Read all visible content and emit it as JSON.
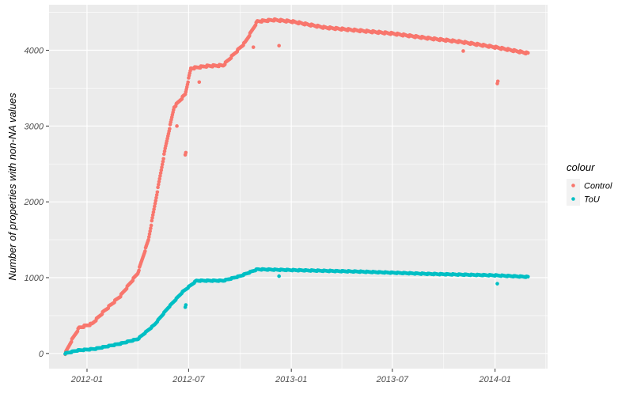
{
  "chart_data": {
    "type": "scatter",
    "title": "",
    "xlabel": "",
    "ylabel": "Number of properties with non-NA values",
    "x_type": "date",
    "xlim": [
      "2011-10-25",
      "2014-04-05"
    ],
    "ylim": [
      -200,
      4600
    ],
    "x_ticks": [
      "2012-01",
      "2012-07",
      "2013-01",
      "2013-07",
      "2014-01"
    ],
    "y_ticks": [
      0,
      1000,
      2000,
      3000,
      4000
    ],
    "grid": true,
    "legend": {
      "title": "colour",
      "placement": "right",
      "entries": [
        {
          "label": "Control",
          "color": "#F8766D"
        },
        {
          "label": "ToU",
          "color": "#00BFC4"
        }
      ]
    },
    "series": [
      {
        "name": "Control",
        "color": "#F8766D",
        "points": [
          [
            "2011-11-23",
            0
          ],
          [
            "2011-12-05",
            180
          ],
          [
            "2011-12-18",
            340
          ],
          [
            "2012-01-10",
            390
          ],
          [
            "2012-02-01",
            560
          ],
          [
            "2012-03-01",
            760
          ],
          [
            "2012-04-01",
            1060
          ],
          [
            "2012-04-20",
            1500
          ],
          [
            "2012-05-05",
            2100
          ],
          [
            "2012-05-20",
            2700
          ],
          [
            "2012-06-05",
            3250
          ],
          [
            "2012-06-25",
            3420
          ],
          [
            "2012-07-05",
            3760
          ],
          [
            "2012-08-01",
            3790
          ],
          [
            "2012-09-01",
            3800
          ],
          [
            "2012-10-10",
            4100
          ],
          [
            "2012-11-01",
            4380
          ],
          [
            "2012-12-01",
            4400
          ],
          [
            "2013-01-01",
            4380
          ],
          [
            "2013-03-01",
            4300
          ],
          [
            "2013-05-01",
            4260
          ],
          [
            "2013-07-01",
            4220
          ],
          [
            "2013-09-01",
            4160
          ],
          [
            "2013-11-01",
            4110
          ],
          [
            "2014-01-01",
            4040
          ],
          [
            "2014-03-01",
            3960
          ]
        ],
        "outliers": [
          [
            "2012-06-25",
            2620
          ],
          [
            "2012-06-26",
            2650
          ],
          [
            "2012-06-10",
            3000
          ],
          [
            "2012-07-20",
            3580
          ],
          [
            "2012-10-25",
            4040
          ],
          [
            "2012-12-10",
            4060
          ],
          [
            "2013-11-05",
            3990
          ],
          [
            "2014-01-05",
            3560
          ],
          [
            "2014-01-06",
            3590
          ]
        ]
      },
      {
        "name": "ToU",
        "color": "#00BFC4",
        "points": [
          [
            "2011-11-23",
            0
          ],
          [
            "2011-12-15",
            40
          ],
          [
            "2012-01-15",
            60
          ],
          [
            "2012-03-01",
            130
          ],
          [
            "2012-04-01",
            190
          ],
          [
            "2012-05-01",
            380
          ],
          [
            "2012-05-25",
            600
          ],
          [
            "2012-06-20",
            810
          ],
          [
            "2012-07-05",
            900
          ],
          [
            "2012-07-15",
            960
          ],
          [
            "2012-09-01",
            960
          ],
          [
            "2012-10-01",
            1020
          ],
          [
            "2012-11-01",
            1110
          ],
          [
            "2013-01-01",
            1100
          ],
          [
            "2013-05-01",
            1080
          ],
          [
            "2013-09-01",
            1050
          ],
          [
            "2014-01-01",
            1030
          ],
          [
            "2014-03-01",
            1010
          ]
        ],
        "outliers": [
          [
            "2012-06-25",
            610
          ],
          [
            "2012-06-26",
            640
          ],
          [
            "2012-12-10",
            1020
          ],
          [
            "2014-01-05",
            920
          ]
        ]
      }
    ]
  }
}
